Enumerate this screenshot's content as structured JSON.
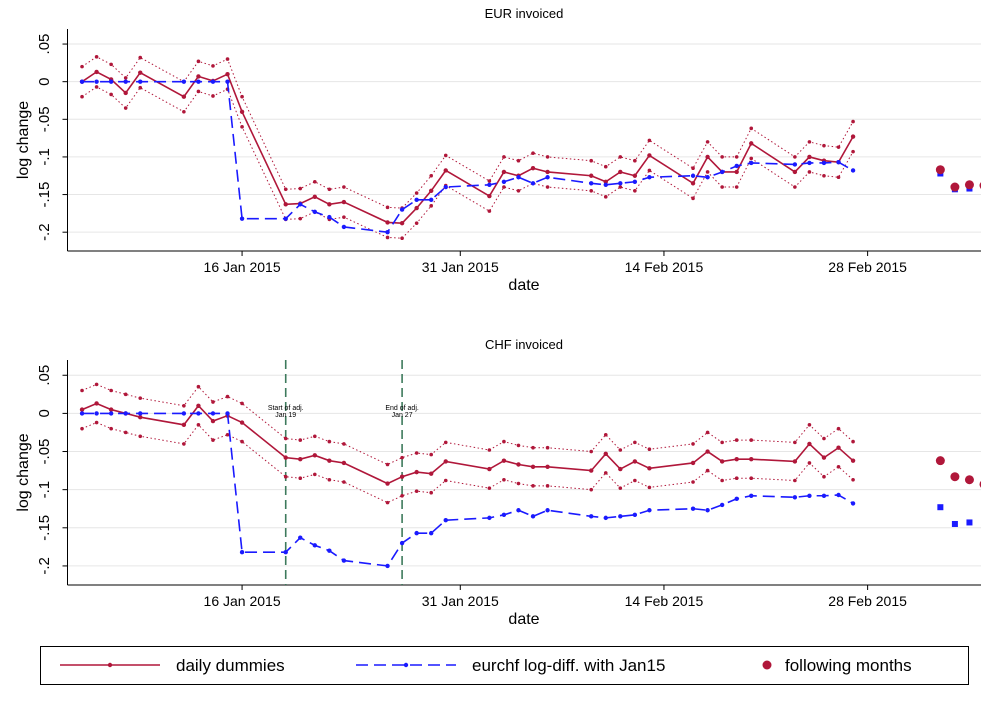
{
  "chart_data": [
    {
      "type": "line",
      "title": "EUR invoiced",
      "xlabel": "date",
      "ylabel": "log change",
      "grid": true,
      "legend": "bottom",
      "x": [
        "2015-01-05",
        "2015-01-06",
        "2015-01-07",
        "2015-01-08",
        "2015-01-09",
        "2015-01-12",
        "2015-01-13",
        "2015-01-14",
        "2015-01-15",
        "2015-01-16",
        "2015-01-19",
        "2015-01-20",
        "2015-01-21",
        "2015-01-22",
        "2015-01-23",
        "2015-01-26",
        "2015-01-27",
        "2015-01-28",
        "2015-01-29",
        "2015-01-30",
        "2015-02-02",
        "2015-02-03",
        "2015-02-04",
        "2015-02-05",
        "2015-02-06",
        "2015-02-09",
        "2015-02-10",
        "2015-02-11",
        "2015-02-12",
        "2015-02-13",
        "2015-02-16",
        "2015-02-17",
        "2015-02-18",
        "2015-02-19",
        "2015-02-20",
        "2015-02-23",
        "2015-02-24",
        "2015-02-25",
        "2015-02-26",
        "2015-02-27"
      ],
      "xlim": [
        "2015-01-04",
        "2015-03-08"
      ],
      "xticks": [
        {
          "value": "2015-01-16",
          "label": "16 Jan 2015"
        },
        {
          "value": "2015-01-31",
          "label": "31 Jan 2015"
        },
        {
          "value": "2015-02-14",
          "label": "14 Feb 2015"
        },
        {
          "value": "2015-02-28",
          "label": "28 Feb 2015"
        }
      ],
      "ylim": [
        -0.225,
        0.07
      ],
      "yticks": [
        {
          "value": 0.05,
          "label": ".05"
        },
        0,
        {
          "value": -0.05,
          "label": "-.05"
        },
        {
          "value": -0.1,
          "label": "-.1"
        },
        {
          "value": -0.15,
          "label": "-.15"
        },
        {
          "value": -0.2,
          "label": "-.2"
        }
      ],
      "series": [
        {
          "name": "daily dummies",
          "color": "#b0173a",
          "line": "solid",
          "values": [
            0,
            0.013,
            0.003,
            -0.015,
            0.012,
            -0.02,
            0.007,
            0.001,
            0.01,
            -0.04,
            -0.163,
            -0.162,
            -0.153,
            -0.163,
            -0.16,
            -0.187,
            -0.188,
            -0.168,
            -0.145,
            -0.118,
            -0.152,
            -0.12,
            -0.125,
            -0.115,
            -0.12,
            -0.125,
            -0.133,
            -0.12,
            -0.125,
            -0.098,
            -0.135,
            -0.1,
            -0.12,
            -0.12,
            -0.082,
            -0.12,
            -0.1,
            -0.105,
            -0.107,
            -0.073
          ],
          "ci_upper": [
            0.02,
            0.033,
            0.023,
            0.005,
            0.032,
            0,
            0.027,
            0.021,
            0.03,
            -0.02,
            -0.143,
            -0.142,
            -0.133,
            -0.143,
            -0.14,
            -0.167,
            -0.168,
            -0.148,
            -0.125,
            -0.098,
            -0.132,
            -0.1,
            -0.105,
            -0.095,
            -0.1,
            -0.105,
            -0.113,
            -0.1,
            -0.105,
            -0.078,
            -0.115,
            -0.08,
            -0.1,
            -0.1,
            -0.062,
            -0.1,
            -0.08,
            -0.085,
            -0.087,
            -0.053
          ],
          "ci_lower": [
            -0.02,
            -0.007,
            -0.017,
            -0.035,
            -0.008,
            -0.04,
            -0.013,
            -0.019,
            -0.01,
            -0.06,
            -0.183,
            -0.182,
            -0.173,
            -0.183,
            -0.18,
            -0.207,
            -0.208,
            -0.188,
            -0.165,
            -0.138,
            -0.172,
            -0.14,
            -0.145,
            -0.135,
            -0.14,
            -0.145,
            -0.153,
            -0.14,
            -0.145,
            -0.118,
            -0.155,
            -0.12,
            -0.14,
            -0.14,
            -0.102,
            -0.14,
            -0.12,
            -0.125,
            -0.127,
            -0.093
          ]
        },
        {
          "name": "eurchf log-diff. with Jan15",
          "color": "#1a1aff",
          "line": "dashed",
          "values": [
            0,
            0,
            0,
            0,
            0,
            0,
            0,
            0,
            0,
            -0.182,
            -0.182,
            -0.163,
            -0.173,
            -0.18,
            -0.193,
            -0.2,
            -0.17,
            -0.157,
            -0.157,
            -0.14,
            -0.137,
            -0.133,
            -0.127,
            -0.135,
            -0.127,
            -0.135,
            -0.137,
            -0.135,
            -0.133,
            -0.127,
            -0.125,
            -0.127,
            -0.12,
            -0.112,
            -0.108,
            -0.11,
            -0.108,
            -0.108,
            -0.107,
            -0.118
          ],
          "monthly_values": [
            -0.122,
            -0.143,
            -0.142,
            -0.14
          ]
        },
        {
          "name": "following months",
          "color": "#b0173a",
          "line": "none",
          "x": [
            "2015-03-05",
            "2015-03-06",
            "2015-03-07",
            "2015-03-08"
          ],
          "values": [
            -0.117,
            -0.14,
            -0.137,
            -0.138
          ]
        }
      ]
    },
    {
      "type": "line",
      "title": "CHF invoiced",
      "xlabel": "date",
      "ylabel": "log change",
      "grid": true,
      "x": [
        "2015-01-05",
        "2015-01-06",
        "2015-01-07",
        "2015-01-08",
        "2015-01-09",
        "2015-01-12",
        "2015-01-13",
        "2015-01-14",
        "2015-01-15",
        "2015-01-16",
        "2015-01-19",
        "2015-01-20",
        "2015-01-21",
        "2015-01-22",
        "2015-01-23",
        "2015-01-26",
        "2015-01-27",
        "2015-01-28",
        "2015-01-29",
        "2015-01-30",
        "2015-02-02",
        "2015-02-03",
        "2015-02-04",
        "2015-02-05",
        "2015-02-06",
        "2015-02-09",
        "2015-02-10",
        "2015-02-11",
        "2015-02-12",
        "2015-02-13",
        "2015-02-16",
        "2015-02-17",
        "2015-02-18",
        "2015-02-19",
        "2015-02-20",
        "2015-02-23",
        "2015-02-24",
        "2015-02-25",
        "2015-02-26",
        "2015-02-27"
      ],
      "xlim": [
        "2015-01-04",
        "2015-03-08"
      ],
      "xticks": [
        {
          "value": "2015-01-16",
          "label": "16 Jan 2015"
        },
        {
          "value": "2015-01-31",
          "label": "31 Jan 2015"
        },
        {
          "value": "2015-02-14",
          "label": "14 Feb 2015"
        },
        {
          "value": "2015-02-28",
          "label": "28 Feb 2015"
        }
      ],
      "ylim": [
        -0.225,
        0.07
      ],
      "yticks": [
        {
          "value": 0.05,
          "label": ".05"
        },
        0,
        {
          "value": -0.05,
          "label": "-.05"
        },
        {
          "value": -0.1,
          "label": "-.1"
        },
        {
          "value": -0.15,
          "label": "-.15"
        },
        {
          "value": -0.2,
          "label": "-.2"
        }
      ],
      "annotations": [
        {
          "x": "2015-01-19",
          "label": [
            "Start of adj.",
            "Jan 19"
          ],
          "color": "#3d7a5c"
        },
        {
          "x": "2015-01-27",
          "label": [
            "End of adj.",
            "Jan 27"
          ],
          "color": "#3d7a5c"
        }
      ],
      "series": [
        {
          "name": "daily dummies",
          "color": "#b0173a",
          "line": "solid",
          "values": [
            0.005,
            0.013,
            0.005,
            0,
            -0.005,
            -0.015,
            0.01,
            -0.01,
            -0.003,
            -0.012,
            -0.058,
            -0.06,
            -0.055,
            -0.062,
            -0.065,
            -0.092,
            -0.083,
            -0.077,
            -0.079,
            -0.063,
            -0.073,
            -0.062,
            -0.067,
            -0.07,
            -0.07,
            -0.075,
            -0.053,
            -0.073,
            -0.063,
            -0.072,
            -0.065,
            -0.05,
            -0.063,
            -0.06,
            -0.06,
            -0.063,
            -0.04,
            -0.058,
            -0.045,
            -0.062
          ],
          "ci_upper": [
            0.03,
            0.038,
            0.03,
            0.025,
            0.02,
            0.01,
            0.035,
            0.015,
            0.022,
            0.013,
            -0.033,
            -0.035,
            -0.03,
            -0.037,
            -0.04,
            -0.067,
            -0.058,
            -0.052,
            -0.054,
            -0.038,
            -0.048,
            -0.037,
            -0.042,
            -0.045,
            -0.045,
            -0.05,
            -0.028,
            -0.048,
            -0.038,
            -0.047,
            -0.04,
            -0.025,
            -0.038,
            -0.035,
            -0.035,
            -0.038,
            -0.015,
            -0.033,
            -0.02,
            -0.037
          ],
          "ci_lower": [
            -0.02,
            -0.012,
            -0.02,
            -0.025,
            -0.03,
            -0.04,
            -0.015,
            -0.035,
            -0.028,
            -0.037,
            -0.083,
            -0.085,
            -0.08,
            -0.087,
            -0.09,
            -0.117,
            -0.108,
            -0.102,
            -0.104,
            -0.088,
            -0.098,
            -0.087,
            -0.092,
            -0.095,
            -0.095,
            -0.1,
            -0.078,
            -0.098,
            -0.088,
            -0.097,
            -0.09,
            -0.075,
            -0.088,
            -0.085,
            -0.085,
            -0.088,
            -0.065,
            -0.083,
            -0.07,
            -0.087
          ]
        },
        {
          "name": "eurchf log-diff. with Jan15",
          "color": "#1a1aff",
          "line": "dashed",
          "values": [
            0,
            0,
            0,
            0,
            0,
            0,
            0,
            0,
            0,
            -0.182,
            -0.182,
            -0.163,
            -0.173,
            -0.18,
            -0.193,
            -0.2,
            -0.17,
            -0.157,
            -0.157,
            -0.14,
            -0.137,
            -0.133,
            -0.127,
            -0.135,
            -0.127,
            -0.135,
            -0.137,
            -0.135,
            -0.133,
            -0.127,
            -0.125,
            -0.127,
            -0.12,
            -0.112,
            -0.108,
            -0.11,
            -0.108,
            -0.108,
            -0.107,
            -0.118
          ],
          "monthly_values": [
            -0.123,
            -0.145,
            -0.143,
            -0.14
          ]
        },
        {
          "name": "following months",
          "color": "#b0173a",
          "line": "none",
          "x": [
            "2015-03-05",
            "2015-03-06",
            "2015-03-07",
            "2015-03-08"
          ],
          "values": [
            -0.062,
            -0.083,
            -0.087,
            -0.093
          ]
        }
      ]
    }
  ]
}
